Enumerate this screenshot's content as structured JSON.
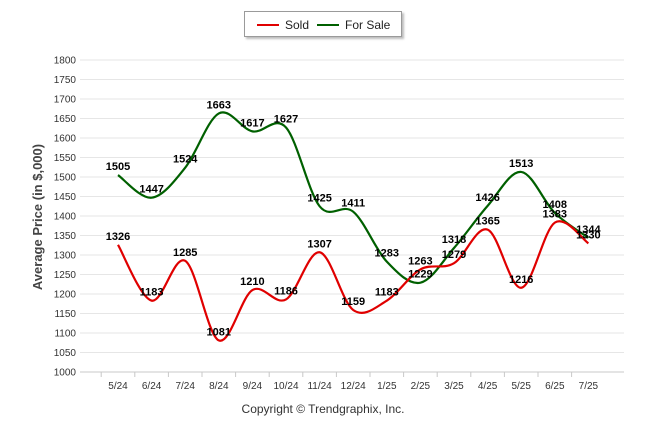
{
  "chart_data": {
    "type": "line",
    "categories": [
      "5/24",
      "6/24",
      "7/24",
      "8/24",
      "9/24",
      "10/24",
      "11/24",
      "12/24",
      "1/25",
      "2/25",
      "3/25",
      "4/25",
      "5/25",
      "6/25",
      "7/25"
    ],
    "series": [
      {
        "name": "Sold",
        "color": "#e00000",
        "values": [
          1326,
          1183,
          1285,
          1081,
          1210,
          1186,
          1307,
          1159,
          1183,
          1263,
          1279,
          1365,
          1216,
          1383,
          1330
        ]
      },
      {
        "name": "For Sale",
        "color": "#006000",
        "values": [
          1505,
          1447,
          1524,
          1663,
          1617,
          1627,
          1425,
          1411,
          1283,
          1229,
          1318,
          1426,
          1513,
          1408,
          1344
        ]
      }
    ],
    "ylabel": "Average Price (in $,000)",
    "ylim": [
      1000,
      1800
    ],
    "yticks": [
      1000,
      1050,
      1100,
      1150,
      1200,
      1250,
      1300,
      1350,
      1400,
      1450,
      1500,
      1550,
      1600,
      1650,
      1700,
      1750,
      1800
    ],
    "legend_position": "top-center",
    "grid": true
  },
  "footer": {
    "credit": "Copyright © Trendgraphix, Inc."
  }
}
